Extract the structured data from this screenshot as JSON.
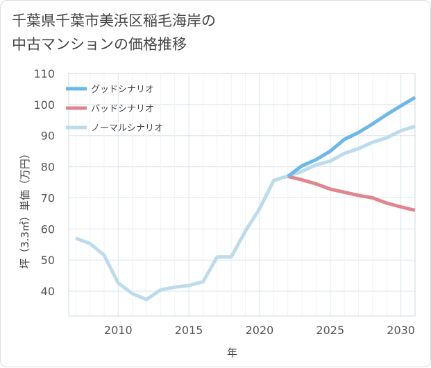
{
  "title_line1": "千葉県千葉市美浜区稲毛海岸の",
  "title_line2": "中古マンションの価格推移",
  "chart_data": {
    "type": "line",
    "title": "千葉県千葉市美浜区稲毛海岸の中古マンションの価格推移",
    "xlabel": "年",
    "ylabel": "坪（3.3㎡）単価（万円）",
    "xlim": [
      2006.5,
      2031
    ],
    "ylim": [
      32,
      110
    ],
    "x_ticks": [
      2010,
      2015,
      2020,
      2025,
      2030
    ],
    "y_ticks": [
      40,
      50,
      60,
      70,
      80,
      90,
      100,
      110
    ],
    "grid": true,
    "legend_position": "top-left",
    "series": [
      {
        "name": "グッドシナリオ",
        "color": "#6cb8ea",
        "x": [
          2022,
          2023,
          2024,
          2025,
          2026,
          2027,
          2028,
          2029,
          2030,
          2031
        ],
        "y": [
          76.9,
          80.3,
          82.3,
          85.0,
          88.8,
          91.0,
          93.8,
          96.8,
          99.6,
          102.3
        ]
      },
      {
        "name": "バッドシナリオ",
        "color": "#e0868e",
        "x": [
          2022,
          2023,
          2024,
          2025,
          2026,
          2027,
          2028,
          2029,
          2030,
          2031
        ],
        "y": [
          76.9,
          75.8,
          74.5,
          72.8,
          71.8,
          70.8,
          70.0,
          68.3,
          67.1,
          66.0
        ]
      },
      {
        "name": "ノーマルシナリオ",
        "color": "#bcdcec",
        "x": [
          2007,
          2008,
          2009,
          2010,
          2011,
          2012,
          2013,
          2014,
          2015,
          2016,
          2017,
          2018,
          2019,
          2020,
          2021,
          2022,
          2023,
          2024,
          2025,
          2026,
          2027,
          2028,
          2029,
          2030,
          2031
        ],
        "y": [
          57.0,
          55.3,
          51.6,
          42.6,
          39.2,
          37.3,
          40.4,
          41.3,
          41.8,
          43.0,
          51.0,
          51.0,
          59.3,
          66.5,
          75.6,
          77.0,
          78.5,
          80.6,
          81.8,
          84.3,
          85.8,
          87.9,
          89.3,
          91.6,
          93.0
        ]
      }
    ]
  }
}
